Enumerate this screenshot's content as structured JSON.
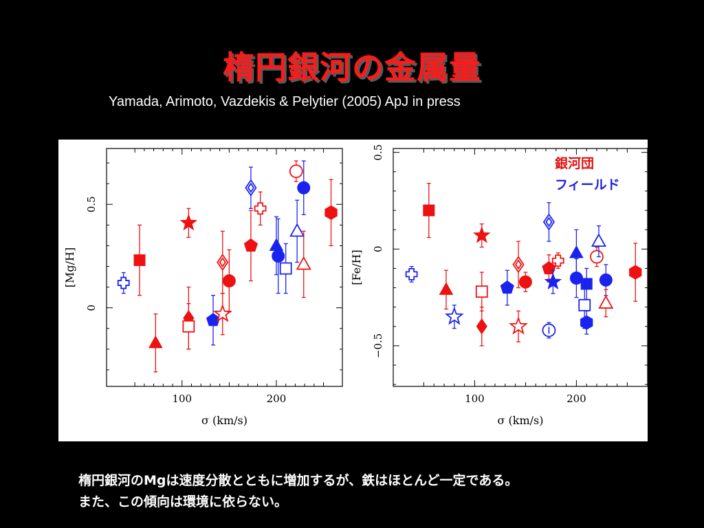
{
  "slide": {
    "title": "楕円銀河の金属量",
    "citation": "Yamada, Arimoto, Vazdekis & Pelytier (2005) ApJ in press",
    "caption_line1": "楕円銀河のMgは速度分散とともに増加するが、鉄はほとんど一定である。",
    "caption_line2": "また、この傾向は環境に依らない。"
  },
  "legend": {
    "cluster": "銀河団",
    "field": "フィールド"
  },
  "colors": {
    "cluster": "#ee1111",
    "field": "#1a22ee"
  },
  "chart_data": [
    {
      "type": "scatter",
      "xlabel": "σ (km/s)",
      "ylabel": "[Mg/H]",
      "xlim": [
        20,
        270
      ],
      "ylim": [
        -0.38,
        0.77
      ],
      "xticks": [
        100,
        200
      ],
      "yticks": [
        0,
        0.5
      ],
      "points": [
        {
          "x": 38,
          "y": 0.12,
          "err": 0.05,
          "shape": "cross",
          "env": "field",
          "filled": false
        },
        {
          "x": 55,
          "y": 0.23,
          "err": 0.17,
          "shape": "square",
          "env": "cluster",
          "filled": true
        },
        {
          "x": 72,
          "y": -0.17,
          "err": 0.14,
          "shape": "triangle",
          "env": "cluster",
          "filled": true
        },
        {
          "x": 107,
          "y": 0.41,
          "err": 0.07,
          "shape": "star",
          "env": "cluster",
          "filled": true
        },
        {
          "x": 107,
          "y": -0.05,
          "err": 0.15,
          "shape": "diamond",
          "env": "cluster",
          "filled": true
        },
        {
          "x": 107,
          "y": -0.09,
          "err": 0.11,
          "shape": "square",
          "env": "cluster",
          "filled": false
        },
        {
          "x": 133,
          "y": -0.06,
          "err": 0.12,
          "shape": "pentagon",
          "env": "field",
          "filled": true
        },
        {
          "x": 143,
          "y": 0.22,
          "err": 0.15,
          "shape": "diamond",
          "env": "cluster",
          "filled": false
        },
        {
          "x": 143,
          "y": -0.03,
          "err": 0.1,
          "shape": "star",
          "env": "cluster",
          "filled": false
        },
        {
          "x": 150,
          "y": 0.13,
          "err": 0.15,
          "shape": "circle",
          "env": "cluster",
          "filled": true
        },
        {
          "x": 173,
          "y": 0.58,
          "err": 0.1,
          "shape": "diamond",
          "env": "field",
          "filled": false
        },
        {
          "x": 173,
          "y": 0.3,
          "err": 0.17,
          "shape": "pentagon",
          "env": "cluster",
          "filled": true
        },
        {
          "x": 183,
          "y": 0.48,
          "err": 0.08,
          "shape": "cross",
          "env": "cluster",
          "filled": false
        },
        {
          "x": 200,
          "y": 0.3,
          "err": 0.14,
          "shape": "triangle",
          "env": "field",
          "filled": true
        },
        {
          "x": 202,
          "y": 0.25,
          "err": 0.18,
          "shape": "circle",
          "env": "field",
          "filled": true
        },
        {
          "x": 210,
          "y": 0.19,
          "err": 0.12,
          "shape": "square",
          "env": "field",
          "filled": false
        },
        {
          "x": 221,
          "y": 0.66,
          "err": 0.05,
          "shape": "circle",
          "env": "cluster",
          "filled": false
        },
        {
          "x": 222,
          "y": 0.37,
          "err": 0.15,
          "shape": "triangle",
          "env": "field",
          "filled": false
        },
        {
          "x": 229,
          "y": 0.58,
          "err": 0.13,
          "shape": "circle",
          "env": "field",
          "filled": true
        },
        {
          "x": 229,
          "y": 0.21,
          "err": 0.16,
          "shape": "triangle",
          "env": "cluster",
          "filled": false
        },
        {
          "x": 258,
          "y": 0.46,
          "err": 0.16,
          "shape": "hexagon",
          "env": "cluster",
          "filled": true
        }
      ]
    },
    {
      "type": "scatter",
      "xlabel": "σ (km/s)",
      "ylabel": "[Fe/H]",
      "xlim": [
        20,
        270
      ],
      "ylim": [
        -0.71,
        0.52
      ],
      "xticks": [
        100,
        200
      ],
      "yticks": [
        -0.5,
        0,
        0.5
      ],
      "points": [
        {
          "x": 38,
          "y": -0.13,
          "err": 0.04,
          "shape": "cross",
          "env": "field",
          "filled": false
        },
        {
          "x": 55,
          "y": 0.2,
          "err": 0.14,
          "shape": "square",
          "env": "cluster",
          "filled": true
        },
        {
          "x": 72,
          "y": -0.21,
          "err": 0.1,
          "shape": "triangle",
          "env": "cluster",
          "filled": true
        },
        {
          "x": 80,
          "y": -0.35,
          "err": 0.06,
          "shape": "star",
          "env": "field",
          "filled": false
        },
        {
          "x": 107,
          "y": 0.07,
          "err": 0.06,
          "shape": "star",
          "env": "cluster",
          "filled": true
        },
        {
          "x": 107,
          "y": -0.22,
          "err": 0.1,
          "shape": "square",
          "env": "cluster",
          "filled": false
        },
        {
          "x": 107,
          "y": -0.4,
          "err": 0.1,
          "shape": "diamond",
          "env": "cluster",
          "filled": true
        },
        {
          "x": 132,
          "y": -0.2,
          "err": 0.09,
          "shape": "pentagon",
          "env": "field",
          "filled": true
        },
        {
          "x": 143,
          "y": -0.08,
          "err": 0.12,
          "shape": "diamond",
          "env": "cluster",
          "filled": false
        },
        {
          "x": 143,
          "y": -0.4,
          "err": 0.08,
          "shape": "star",
          "env": "cluster",
          "filled": false
        },
        {
          "x": 150,
          "y": -0.17,
          "err": 0.05,
          "shape": "circle",
          "env": "cluster",
          "filled": true
        },
        {
          "x": 173,
          "y": 0.14,
          "err": 0.1,
          "shape": "diamond",
          "env": "field",
          "filled": false
        },
        {
          "x": 173,
          "y": -0.1,
          "err": 0.07,
          "shape": "pentagon",
          "env": "cluster",
          "filled": true
        },
        {
          "x": 173,
          "y": -0.42,
          "err": 0.04,
          "shape": "circle-i",
          "env": "field",
          "filled": false
        },
        {
          "x": 177,
          "y": -0.17,
          "err": 0.06,
          "shape": "star",
          "env": "field",
          "filled": true
        },
        {
          "x": 182,
          "y": -0.06,
          "err": 0.04,
          "shape": "cross",
          "env": "cluster",
          "filled": false
        },
        {
          "x": 200,
          "y": -0.02,
          "err": 0.12,
          "shape": "triangle",
          "env": "field",
          "filled": true
        },
        {
          "x": 200,
          "y": -0.15,
          "err": 0.1,
          "shape": "circle",
          "env": "field",
          "filled": true
        },
        {
          "x": 208,
          "y": -0.29,
          "err": 0.12,
          "shape": "square",
          "env": "field",
          "filled": false
        },
        {
          "x": 210,
          "y": -0.18,
          "err": 0.08,
          "shape": "square",
          "env": "field",
          "filled": true
        },
        {
          "x": 210,
          "y": -0.38,
          "err": 0.06,
          "shape": "hexagon",
          "env": "field",
          "filled": true
        },
        {
          "x": 220,
          "y": -0.04,
          "err": 0.05,
          "shape": "circle",
          "env": "cluster",
          "filled": false
        },
        {
          "x": 222,
          "y": 0.04,
          "err": 0.08,
          "shape": "triangle",
          "env": "field",
          "filled": false
        },
        {
          "x": 229,
          "y": -0.16,
          "err": 0.08,
          "shape": "circle",
          "env": "field",
          "filled": true
        },
        {
          "x": 229,
          "y": -0.28,
          "err": 0.07,
          "shape": "triangle",
          "env": "cluster",
          "filled": false
        },
        {
          "x": 258,
          "y": -0.12,
          "err": 0.15,
          "shape": "hexagon",
          "env": "cluster",
          "filled": true
        }
      ]
    }
  ]
}
